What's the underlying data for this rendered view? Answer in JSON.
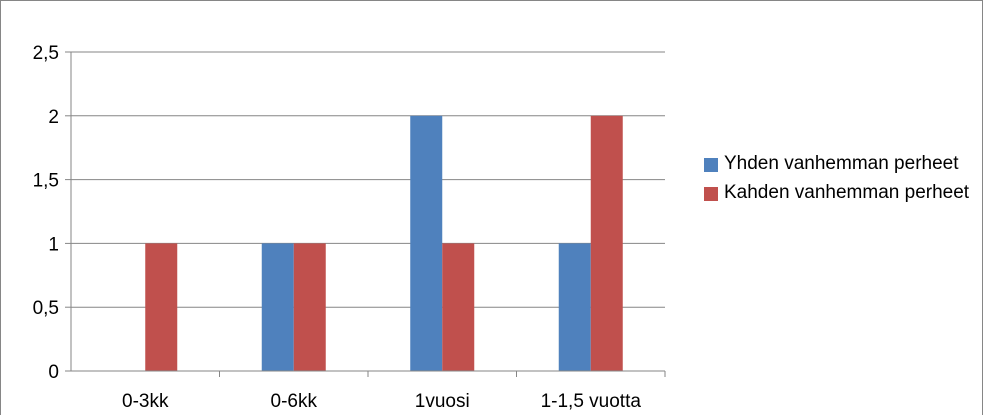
{
  "chart_data": {
    "type": "bar",
    "categories": [
      "0-3kk",
      "0-6kk",
      "1vuosi",
      "1-1,5 vuotta"
    ],
    "series": [
      {
        "name": "Yhden vanhemman perheet",
        "values": [
          0,
          1,
          2,
          1
        ],
        "color": "#4F81BD"
      },
      {
        "name": "Kahden vanhemman perheet",
        "values": [
          1,
          1,
          1,
          2
        ],
        "color": "#C0504D"
      }
    ],
    "yticks": [
      "0",
      "0,5",
      "1",
      "1,5",
      "2",
      "2,5"
    ],
    "ylim": [
      0,
      2.5
    ],
    "grid": true,
    "legend_position": "right"
  }
}
